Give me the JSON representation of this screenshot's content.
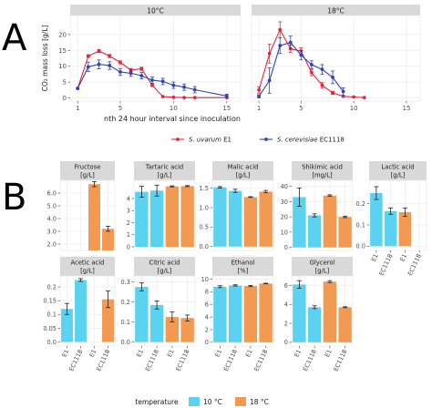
{
  "colors": {
    "uvarum": "#e3263a",
    "cerevisiae": "#2e43b8",
    "temp10": "#5bd3f0",
    "temp18": "#f29a52",
    "strip": "#d9d9d9",
    "grid": "#ebebeb",
    "panel": "#ffffff"
  },
  "panel_labels": [
    "A",
    "B"
  ],
  "chart_data": [
    {
      "type": "line",
      "panel": "A",
      "ylabel": "CO₂ mass loss [g/L]",
      "xlabel": "nth 24 hour interval since inoculation",
      "facets": [
        "10°C",
        "18°C"
      ],
      "xlim": [
        0.3,
        16.3
      ],
      "ylim": [
        -1,
        26
      ],
      "xticks": [
        1,
        5,
        10,
        15
      ],
      "yticks": [
        0,
        5,
        10,
        15,
        20
      ],
      "legend": {
        "position": "bottom",
        "items": [
          {
            "label": "S. uvarum",
            "suffix": " E1",
            "color_key": "uvarum"
          },
          {
            "label": "S. cerevisiae",
            "suffix": " EC1118",
            "color_key": "cerevisiae"
          }
        ]
      },
      "series": [
        {
          "name": "S. uvarum E1",
          "facet": 0,
          "color_key": "uvarum",
          "x": [
            1,
            2,
            3,
            4,
            5,
            6,
            7,
            8,
            9,
            10,
            11,
            12,
            15
          ],
          "y": [
            3,
            13.2,
            14.8,
            13.2,
            11.2,
            8.8,
            9.2,
            4,
            0.4,
            0.2,
            0.1,
            0.1,
            0.1
          ],
          "err": [
            0,
            0.4,
            0.5,
            0.5,
            0.5,
            0.5,
            0.5,
            0.4,
            0,
            0,
            0,
            0,
            0
          ]
        },
        {
          "name": "S. cerevisiae EC1118",
          "facet": 0,
          "color_key": "cerevisiae",
          "x": [
            1,
            2,
            3,
            4,
            5,
            6,
            7,
            8,
            9,
            10,
            11,
            12,
            15
          ],
          "y": [
            3,
            9.8,
            10.6,
            10.2,
            8.2,
            7.8,
            7,
            5.6,
            5.2,
            4,
            3.4,
            2.6,
            0.6
          ],
          "err": [
            0,
            1.5,
            1.4,
            1.2,
            1.1,
            1.0,
            1.0,
            1.0,
            1.0,
            1.0,
            1.0,
            1.0,
            0.6
          ]
        },
        {
          "name": "S. uvarum E1",
          "facet": 1,
          "color_key": "uvarum",
          "x": [
            1,
            2,
            3,
            4,
            5,
            6,
            7,
            8,
            9,
            10,
            11
          ],
          "y": [
            2.5,
            14,
            21.5,
            15.5,
            14.8,
            8,
            4,
            1.6,
            0.5,
            0.3,
            0.1
          ],
          "err": [
            1,
            3,
            2.5,
            1.2,
            1,
            1,
            0.8,
            0.5,
            0,
            0,
            0
          ]
        },
        {
          "name": "S. cerevisiae EC1118",
          "facet": 1,
          "color_key": "cerevisiae",
          "x": [
            1,
            2,
            3,
            4,
            5,
            6,
            7,
            8,
            9
          ],
          "y": [
            0.5,
            5.5,
            16.5,
            17.5,
            13.5,
            10.5,
            9,
            6.5,
            2
          ],
          "err": [
            0.5,
            4,
            2.5,
            2,
            1.5,
            1.2,
            1.5,
            2,
            1.2
          ]
        }
      ]
    },
    {
      "type": "bar",
      "panel": "B",
      "categories": [
        "E1",
        "EC1118",
        "E1",
        "EC1118"
      ],
      "legend": {
        "title": "temperature",
        "position": "bottom",
        "items": [
          {
            "label": "10 °C",
            "color_key": "temp10"
          },
          {
            "label": "18 °C",
            "color_key": "temp18"
          }
        ]
      },
      "bar_colors": [
        "temp10",
        "temp10",
        "temp18",
        "temp18"
      ],
      "facets": [
        {
          "title": [
            "Fructose",
            "[g/L]"
          ],
          "ylim": [
            1.5,
            7.0
          ],
          "yticks": [
            2.0,
            3.0,
            4.0,
            5.0,
            6.0
          ],
          "ytick_labels": [
            "2.0",
            "3.0",
            "4.0",
            "5.0",
            "6.0"
          ],
          "values": [
            null,
            null,
            6.7,
            3.2
          ],
          "err": [
            0,
            0,
            0.2,
            0.2
          ],
          "xaxis": false
        },
        {
          "title": [
            "Tartaric acid",
            "[g/L]"
          ],
          "ylim": [
            -0.3,
            5.5
          ],
          "yticks": [
            0,
            1,
            2,
            3,
            4
          ],
          "ytick_labels": [
            "0",
            "1",
            "2",
            "3",
            "4"
          ],
          "values": [
            4.55,
            4.65,
            5.0,
            5.02
          ],
          "err": [
            0.45,
            0.45,
            0.04,
            0.04
          ],
          "xaxis": false
        },
        {
          "title": [
            "Malic acid",
            "[g/L]"
          ],
          "ylim": [
            -0.1,
            1.7
          ],
          "yticks": [
            0,
            0.5,
            1.0,
            1.5
          ],
          "ytick_labels": [
            "0.0",
            "0.5",
            "1.0",
            "1.5"
          ],
          "values": [
            1.52,
            1.43,
            1.27,
            1.41
          ],
          "err": [
            0.02,
            0.04,
            0.01,
            0.03
          ],
          "xaxis": false
        },
        {
          "title": [
            "Shikimic acid",
            "[mg/L]"
          ],
          "ylim": [
            -2,
            44
          ],
          "yticks": [
            0,
            10,
            20,
            30,
            40
          ],
          "ytick_labels": [
            "0",
            "10",
            "20",
            "30",
            "40"
          ],
          "values": [
            33,
            21,
            34,
            20
          ],
          "err": [
            6,
            1,
            0.5,
            0.5
          ],
          "xaxis": false
        },
        {
          "title": [
            "Lactic acid",
            "[g/L]"
          ],
          "ylim": [
            -0.02,
            0.31
          ],
          "yticks": [
            0,
            0.1,
            0.2
          ],
          "ytick_labels": [
            "0.0",
            "0.1",
            "0.2"
          ],
          "values": [
            0.25,
            0.165,
            0.16,
            null
          ],
          "err": [
            0.03,
            0.015,
            0.02,
            0
          ],
          "xaxis": true
        },
        {
          "title": [
            "Acetic acid",
            "[g/L]"
          ],
          "ylim": [
            -0.015,
            0.24
          ],
          "yticks": [
            0,
            0.05,
            0.1,
            0.15,
            0.2
          ],
          "ytick_labels": [
            "0.0",
            "0.05",
            "0.1",
            "0.15",
            "0.2"
          ],
          "values": [
            0.12,
            0.225,
            null,
            0.155
          ],
          "err": [
            0.02,
            0.005,
            0,
            0.03
          ],
          "xaxis": true
        },
        {
          "title": [
            "Citric acid",
            "[g/L]"
          ],
          "ylim": [
            -0.02,
            0.33
          ],
          "yticks": [
            0,
            0.1,
            0.2,
            0.3
          ],
          "ytick_labels": [
            "0.0",
            "0.1",
            "0.2",
            "0.3"
          ],
          "values": [
            0.275,
            0.185,
            0.125,
            0.12
          ],
          "err": [
            0.02,
            0.02,
            0.025,
            0.015
          ],
          "xaxis": true
        },
        {
          "title": [
            "Ethanol",
            "[%]"
          ],
          "ylim": [
            -0.6,
            10.5
          ],
          "yticks": [
            0,
            2,
            4,
            6,
            8,
            10
          ],
          "ytick_labels": [
            "0",
            "2",
            "4",
            "6",
            "8",
            "10"
          ],
          "values": [
            8.8,
            9.0,
            8.9,
            9.3
          ],
          "err": [
            0.15,
            0.1,
            0.1,
            0.05
          ],
          "xaxis": true
        },
        {
          "title": [
            "Glycerol",
            "[g/L]"
          ],
          "ylim": [
            -0.4,
            7.0
          ],
          "yticks": [
            0,
            2,
            4,
            6
          ],
          "ytick_labels": [
            "0",
            "2",
            "4",
            "6"
          ],
          "values": [
            6.1,
            3.7,
            6.4,
            3.7
          ],
          "err": [
            0.4,
            0.15,
            0.1,
            0.05
          ],
          "xaxis": true
        }
      ]
    }
  ]
}
